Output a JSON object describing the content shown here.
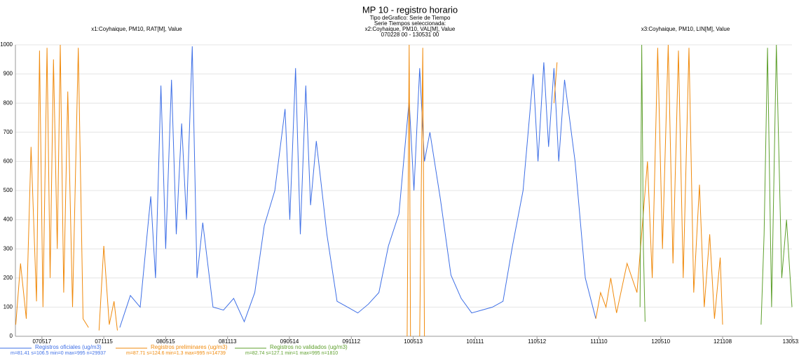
{
  "chart_data": {
    "type": "line",
    "title": "MP 10 - registro horario",
    "subtitle_lines": [
      "Tipo deGrafico: Serie de Tiempo",
      "Serie Tiempos seleccionada:",
      "x2:Coyhaique, PM10, VAL[M], Value",
      "070228 00 - 130531 00"
    ],
    "left_label": "x1:Coyhaique, PM10, RAT[M], Value",
    "right_label": "x3:Coyhaique, PM10, LIN[M], Value",
    "xlim": [
      "070228",
      "130531"
    ],
    "xticks": [
      "070517",
      "071115",
      "080515",
      "081113",
      "090514",
      "091112",
      "100513",
      "101111",
      "110512",
      "111110",
      "120510",
      "121108",
      "130531"
    ],
    "ylim": [
      0,
      1000
    ],
    "yticks": [
      0,
      100,
      200,
      300,
      400,
      500,
      600,
      700,
      800,
      900,
      1000
    ],
    "grid": true,
    "series": [
      {
        "name": "Registros oficiales (ug/m3)",
        "stats": "m=81.41 s=106.5 min=0 max=995 n=29937",
        "color": "#3e6fe6",
        "x": [
          "080101",
          "080201",
          "080301",
          "080401",
          "080415",
          "080501",
          "080515",
          "080601",
          "080615",
          "080701",
          "080715",
          "080801",
          "080815",
          "080901",
          "081001",
          "081101",
          "081201",
          "090101",
          "090201",
          "090301",
          "090401",
          "090501",
          "090515",
          "090601",
          "090615",
          "090701",
          "090715",
          "090801",
          "090901",
          "091001",
          "091101",
          "091201",
          "100101",
          "100201",
          "100301",
          "100401",
          "100501",
          "100515",
          "100601",
          "100615",
          "100701",
          "100801",
          "100901",
          "101001",
          "101101",
          "101201",
          "110101",
          "110201",
          "110301",
          "110401",
          "110501",
          "110515",
          "110601",
          "110615",
          "110701",
          "110715",
          "110801",
          "110901",
          "111001",
          "111101"
        ],
        "values": [
          30,
          140,
          100,
          480,
          200,
          860,
          300,
          880,
          350,
          730,
          400,
          995,
          200,
          390,
          100,
          90,
          130,
          50,
          150,
          380,
          500,
          780,
          400,
          920,
          350,
          860,
          450,
          670,
          350,
          120,
          100,
          80,
          110,
          150,
          310,
          420,
          810,
          500,
          920,
          600,
          700,
          470,
          210,
          130,
          80,
          90,
          100,
          120,
          310,
          500,
          900,
          600,
          940,
          650,
          920,
          600,
          880,
          600,
          200,
          60
        ]
      },
      {
        "name": "Registros preliminares (ug/m3)",
        "stats": "m=87.71 s=124.6 min=1.3 max=995 n=14739",
        "color": "#f08a0c",
        "x": [
          "070301",
          "070315",
          "070401",
          "070415",
          "070501",
          "070510",
          "070520",
          "070601",
          "070610",
          "070620",
          "070701",
          "070710",
          "070720",
          "070801",
          "070815",
          "070901",
          "070915",
          "071001",
          "071015",
          "071101",
          "071115",
          "071201",
          "071215",
          "071225",
          "080101",
          "100425",
          "100501",
          "100505",
          "100510",
          "100601",
          "100610",
          "100615",
          "100620",
          "110701",
          "110710",
          "110720",
          "111101",
          "111115",
          "111201",
          "111215",
          "120101",
          "120201",
          "120301",
          "120401",
          "120415",
          "120501",
          "120515",
          "120601",
          "120615",
          "120701",
          "120715",
          "120801",
          "120815",
          "120901",
          "120915",
          "121001",
          "121015",
          "121101",
          "121108"
        ],
        "values": [
          40,
          250,
          60,
          650,
          120,
          980,
          100,
          990,
          200,
          950,
          300,
          1000,
          150,
          840,
          100,
          990,
          60,
          30,
          null,
          20,
          310,
          40,
          120,
          20,
          null,
          0,
          1000,
          0,
          null,
          0,
          990,
          0,
          null,
          800,
          940,
          null,
          60,
          150,
          100,
          200,
          80,
          250,
          150,
          600,
          200,
          990,
          300,
          1000,
          250,
          980,
          200,
          990,
          150,
          520,
          100,
          350,
          60,
          270,
          40
        ]
      },
      {
        "name": "Registros no validados (ug/m3)",
        "stats": "m=82.74 s=127.1 min=1 max=995 n=1810",
        "color": "#5fa02e",
        "x": [
          "120310",
          "120315",
          "120320",
          "120325",
          "120401",
          "130301",
          "130310",
          "130320",
          "130401",
          "130415",
          "130501",
          "130515",
          "130531"
        ],
        "values": [
          100,
          1000,
          300,
          50,
          null,
          40,
          350,
          990,
          100,
          1000,
          200,
          400,
          100
        ]
      }
    ]
  }
}
